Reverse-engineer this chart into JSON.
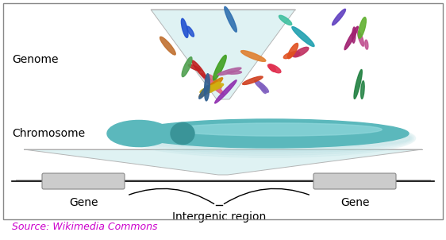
{
  "bg_color": "#ffffff",
  "border_color": "#888888",
  "source_text": "Source: Wikimedia Commons",
  "source_color": "#cc00cc",
  "genome_label": "Genome",
  "chromosome_label": "Chromosome",
  "gene_label": "Gene",
  "intergenic_label": "Intergenic region",
  "label_fontsize": 10,
  "source_fontsize": 9,
  "fig_width": 5.62,
  "fig_height": 3.02,
  "dpi": 100
}
